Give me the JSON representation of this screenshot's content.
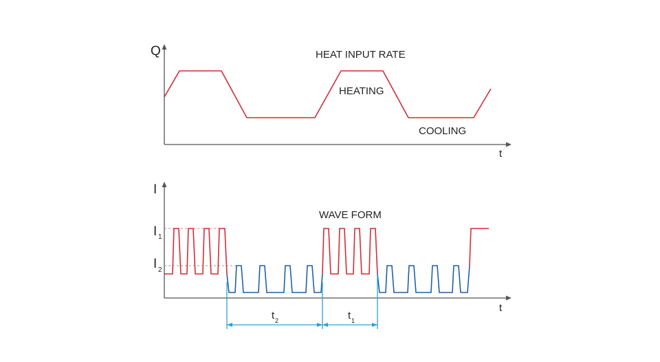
{
  "top_plot": {
    "y_axis_label": "Q",
    "x_axis_label": "t",
    "title": "HEAT INPUT RATE",
    "label_heating": "HEATING",
    "label_cooling": "COOLING"
  },
  "bottom_plot": {
    "y_axis_label": "I",
    "x_axis_label": "t",
    "title": "WAVE FORM",
    "level_high": {
      "main": "I",
      "sub": "1"
    },
    "level_low": {
      "main": "I",
      "sub": "2"
    },
    "dim_cooling": {
      "main": "t",
      "sub": "2"
    },
    "dim_heating": {
      "main": "t",
      "sub": "1"
    }
  },
  "colors": {
    "heating": "#d42a37",
    "cooling": "#1f5fa8",
    "dimension": "#2aa3d4",
    "axis": "#555555"
  }
}
